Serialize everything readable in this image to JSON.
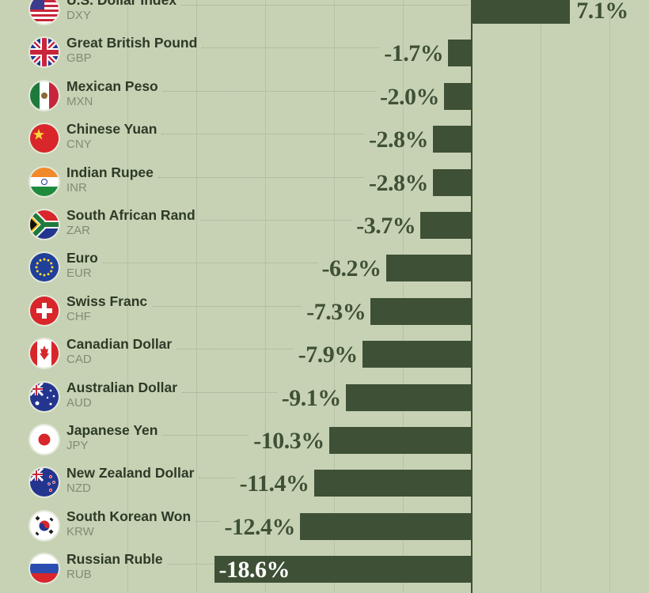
{
  "chart_data": {
    "type": "bar",
    "orientation": "horizontal",
    "categories": [
      {
        "name": "U.S. Dollar Index",
        "code": "DXY",
        "flag": "us-flag-icon"
      },
      {
        "name": "Great British Pound",
        "code": "GBP",
        "flag": "uk-flag-icon"
      },
      {
        "name": "Mexican Peso",
        "code": "MXN",
        "flag": "mexico-flag-icon"
      },
      {
        "name": "Chinese Yuan",
        "code": "CNY",
        "flag": "china-flag-icon"
      },
      {
        "name": "Indian Rupee",
        "code": "INR",
        "flag": "india-flag-icon"
      },
      {
        "name": "South African Rand",
        "code": "ZAR",
        "flag": "south-africa-flag-icon"
      },
      {
        "name": "Euro",
        "code": "EUR",
        "flag": "eu-flag-icon"
      },
      {
        "name": "Swiss Franc",
        "code": "CHF",
        "flag": "switzerland-flag-icon"
      },
      {
        "name": "Canadian Dollar",
        "code": "CAD",
        "flag": "canada-flag-icon"
      },
      {
        "name": "Australian Dollar",
        "code": "AUD",
        "flag": "australia-flag-icon"
      },
      {
        "name": "Japanese Yen",
        "code": "JPY",
        "flag": "japan-flag-icon"
      },
      {
        "name": "New Zealand Dollar",
        "code": "NZD",
        "flag": "new-zealand-flag-icon"
      },
      {
        "name": "South Korean Won",
        "code": "KRW",
        "flag": "south-korea-flag-icon"
      },
      {
        "name": "Russian Ruble",
        "code": "RUB",
        "flag": "russia-flag-icon"
      }
    ],
    "values": [
      7.1,
      -1.7,
      -2.0,
      -2.8,
      -2.8,
      -3.7,
      -6.2,
      -7.3,
      -7.9,
      -9.1,
      -10.3,
      -11.4,
      -12.4,
      -18.6
    ],
    "labels": [
      "7.1%",
      "-1.7%",
      "-2.0%",
      "-2.8%",
      "-2.8%",
      "-3.7%",
      "-6.2%",
      "-7.3%",
      "-7.9%",
      "-9.1%",
      "-10.3%",
      "-11.4%",
      "-12.4%",
      "-18.6%"
    ],
    "grid": true,
    "colors": {
      "background": "#c7d2b4",
      "bar": "#3e5035",
      "label": "#3e5035",
      "name": "#2c3a27",
      "code": "#7f8d75"
    }
  }
}
